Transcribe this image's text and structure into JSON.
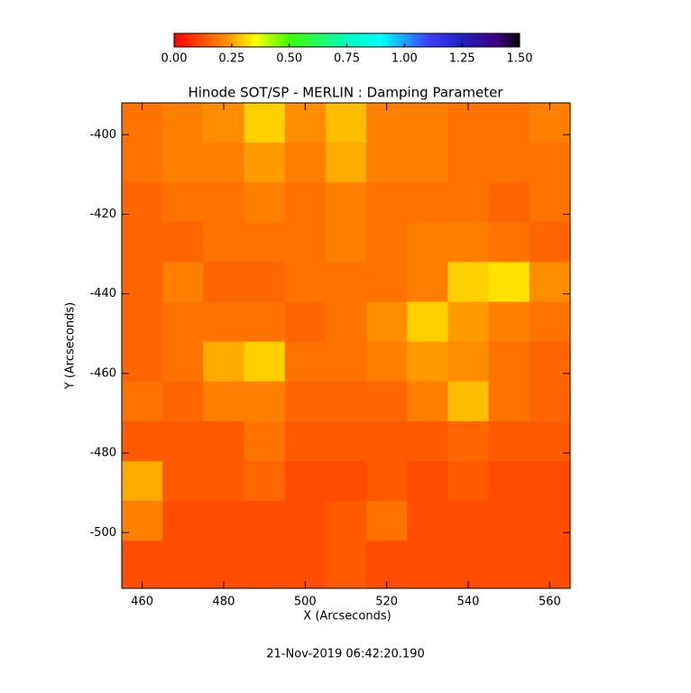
{
  "chart_data": {
    "type": "heatmap",
    "title": "Hinode SOT/SP - MERLIN : Damping Parameter",
    "x_label": "X (Arcseconds)",
    "y_label": "Y (Arcseconds)",
    "timestamp": "21-Nov-2019 06:42:20.190",
    "xlim": [
      455,
      565
    ],
    "ylim": [
      -514,
      -392
    ],
    "xticks": [
      460,
      480,
      500,
      520,
      540,
      560
    ],
    "yticks": [
      -400,
      -420,
      -440,
      -460,
      -480,
      -500
    ],
    "x": [
      460,
      470,
      480,
      490,
      500,
      510,
      520,
      530,
      540,
      550,
      560
    ],
    "y": [
      -397,
      -407,
      -417,
      -427,
      -437,
      -447,
      -457,
      -467,
      -477,
      -487,
      -497,
      -507
    ],
    "z": [
      [
        0.18,
        0.2,
        0.22,
        0.3,
        0.22,
        0.28,
        0.2,
        0.2,
        0.18,
        0.18,
        0.2
      ],
      [
        0.18,
        0.2,
        0.2,
        0.24,
        0.2,
        0.26,
        0.2,
        0.2,
        0.18,
        0.18,
        0.18
      ],
      [
        0.16,
        0.18,
        0.18,
        0.2,
        0.18,
        0.2,
        0.18,
        0.18,
        0.18,
        0.16,
        0.18
      ],
      [
        0.16,
        0.16,
        0.18,
        0.18,
        0.18,
        0.2,
        0.18,
        0.2,
        0.2,
        0.18,
        0.16
      ],
      [
        0.16,
        0.2,
        0.16,
        0.16,
        0.18,
        0.18,
        0.18,
        0.2,
        0.3,
        0.32,
        0.22
      ],
      [
        0.16,
        0.18,
        0.18,
        0.18,
        0.16,
        0.18,
        0.22,
        0.3,
        0.24,
        0.2,
        0.18
      ],
      [
        0.16,
        0.18,
        0.26,
        0.3,
        0.18,
        0.18,
        0.2,
        0.24,
        0.22,
        0.18,
        0.16
      ],
      [
        0.18,
        0.16,
        0.2,
        0.2,
        0.16,
        0.16,
        0.16,
        0.2,
        0.28,
        0.18,
        0.16
      ],
      [
        0.14,
        0.14,
        0.14,
        0.18,
        0.14,
        0.14,
        0.14,
        0.14,
        0.16,
        0.14,
        0.14
      ],
      [
        0.26,
        0.14,
        0.14,
        0.16,
        0.12,
        0.12,
        0.14,
        0.12,
        0.14,
        0.12,
        0.12
      ],
      [
        0.2,
        0.12,
        0.12,
        0.12,
        0.12,
        0.14,
        0.18,
        0.12,
        0.12,
        0.12,
        0.12
      ],
      [
        0.12,
        0.12,
        0.12,
        0.12,
        0.12,
        0.14,
        0.12,
        0.12,
        0.12,
        0.12,
        0.12
      ]
    ],
    "colorbar_lim": [
      0,
      1.5
    ],
    "colorbar_ticks": [
      {
        "value": 0,
        "label": "0.00"
      },
      {
        "value": 0.25,
        "label": "0.25"
      },
      {
        "value": 0.5,
        "label": "0.50"
      },
      {
        "value": 0.75,
        "label": "0.75"
      },
      {
        "value": 1,
        "label": "1.00"
      },
      {
        "value": 1.25,
        "label": "1.25"
      },
      {
        "value": 1.5,
        "label": "1.50"
      }
    ],
    "colorscale": [
      [
        0,
        "#ff0000"
      ],
      [
        0.25,
        "#ffa000"
      ],
      [
        0.35,
        "#ffff00"
      ],
      [
        0.5,
        "#40ff00"
      ],
      [
        0.75,
        "#00ffc0"
      ],
      [
        0.9,
        "#00ffff"
      ],
      [
        1.1,
        "#4040ff"
      ],
      [
        1.25,
        "#2020c0"
      ],
      [
        1.4,
        "#400080"
      ],
      [
        1.5,
        "#000000"
      ]
    ]
  }
}
